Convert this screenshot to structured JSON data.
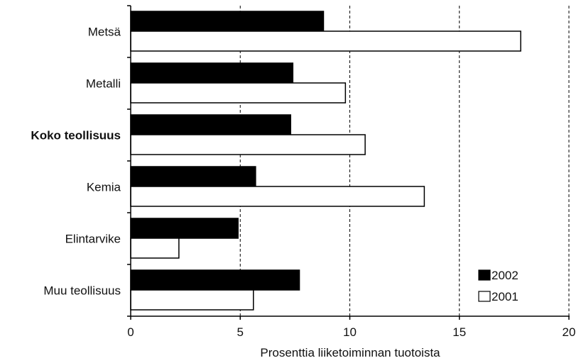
{
  "chart_data": {
    "type": "bar",
    "orientation": "horizontal",
    "categories": [
      "Metsä",
      "Metalli",
      "Koko teollisuus",
      "Kemia",
      "Elintarvike",
      "Muu teollisuus"
    ],
    "bold_categories": [
      "Koko teollisuus"
    ],
    "series": [
      {
        "name": "2002",
        "color": "#000000",
        "values": [
          8.8,
          7.4,
          7.3,
          5.7,
          4.9,
          7.7
        ]
      },
      {
        "name": "2001",
        "color": "#ffffff",
        "values": [
          17.8,
          9.8,
          10.7,
          13.4,
          2.2,
          5.6
        ]
      }
    ],
    "xlabel": "Prosenttia liiketoiminnan tuotoista",
    "xlim": [
      0,
      20
    ],
    "xticks": [
      "0",
      "5",
      "10",
      "15",
      "20"
    ],
    "grid": "vertical-dashed",
    "legend_position": "bottom-right"
  }
}
